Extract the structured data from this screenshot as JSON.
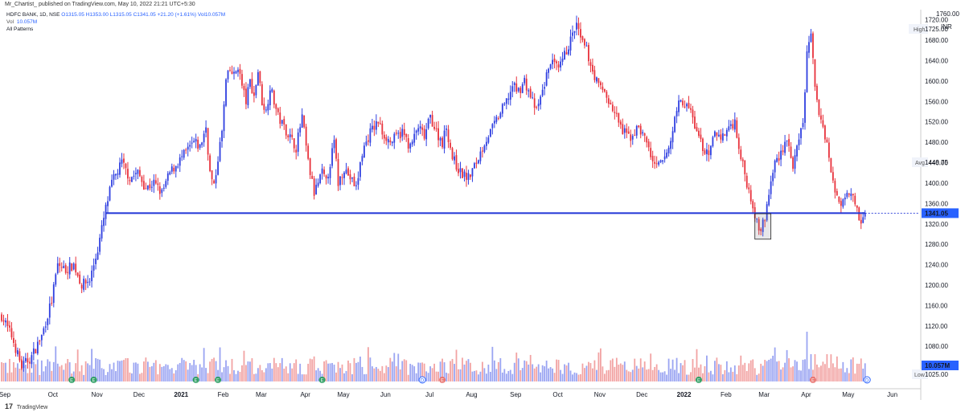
{
  "header": {
    "published": "Mr_Chartist_ published on TradingView.com, May 10, 2022 21:21 UTC+5:30"
  },
  "legend": {
    "symbol": "HDFC BANK, 1D, NSE",
    "ohlc": {
      "o": "O1315.05",
      "h": "H1353.00",
      "l": "L1315.05",
      "c": "C1341.05",
      "chg": "+21.20 (+1.61%)",
      "vol": "Vol10.057M"
    },
    "vol_label": "Vol",
    "vol_value": "10.057M",
    "patterns": "All Patterns"
  },
  "footer": {
    "logo": "17",
    "brand": "TradingView"
  },
  "colors": {
    "up": "#2f3fe0",
    "down": "#e8323c",
    "vol_up": "#9aa4f2",
    "vol_down": "#f2a3a3",
    "support": "#2135d6",
    "accent": "#2962ff",
    "event_green": "#2e9e63",
    "event_red": "#e8736f",
    "event_blue": "#2962ff"
  },
  "chart_data": {
    "type": "candlestick",
    "symbol": "HDFC BANK",
    "interval": "1D",
    "exchange": "NSE",
    "currency": "INR",
    "ylim": [
      1000,
      1740
    ],
    "y_ticks": [
      1040,
      1080,
      1120,
      1160,
      1200,
      1240,
      1280,
      1320,
      1360,
      1400,
      1440,
      1480,
      1520,
      1560,
      1600,
      1640,
      1680,
      1720
    ],
    "y_tick_labels": [
      "1040.00",
      "1080.00",
      "1120.00",
      "1160.00",
      "1200.00",
      "1240.00",
      "1280.00",
      "1320.00",
      "1360.00",
      "1400.00",
      "1440.00",
      "1480.00",
      "1520.00",
      "1560.00",
      "1600.00",
      "1640.00",
      "1680.00",
      "1720.00"
    ],
    "top_tick_label": "1760.00",
    "currency_label": "INR",
    "x_labels": [
      {
        "label": "Sep",
        "x": 0
      },
      {
        "label": "Oct",
        "x": 24
      },
      {
        "label": "Nov",
        "x": 46
      },
      {
        "label": "Dec",
        "x": 67
      },
      {
        "label": "2021",
        "x": 88,
        "bold": true
      },
      {
        "label": "Feb",
        "x": 109
      },
      {
        "label": "Mar",
        "x": 128
      },
      {
        "label": "Apr",
        "x": 150
      },
      {
        "label": "May",
        "x": 169
      },
      {
        "label": "Jun",
        "x": 190
      },
      {
        "label": "Jul",
        "x": 212
      },
      {
        "label": "Aug",
        "x": 233
      },
      {
        "label": "Sep",
        "x": 255
      },
      {
        "label": "Oct",
        "x": 276
      },
      {
        "label": "Nov",
        "x": 297
      },
      {
        "label": "Dec",
        "x": 318
      },
      {
        "label": "2022",
        "x": 339,
        "bold": true
      },
      {
        "label": "Feb",
        "x": 360
      },
      {
        "label": "Mar",
        "x": 379
      },
      {
        "label": "Apr",
        "x": 400
      },
      {
        "label": "May",
        "x": 421
      },
      {
        "label": "Jun",
        "x": 443
      }
    ],
    "price_path": [
      [
        0,
        1140
      ],
      [
        5,
        1100
      ],
      [
        10,
        1040
      ],
      [
        15,
        1060
      ],
      [
        20,
        1100
      ],
      [
        25,
        1170
      ],
      [
        28,
        1240
      ],
      [
        32,
        1230
      ],
      [
        36,
        1240
      ],
      [
        40,
        1200
      ],
      [
        44,
        1210
      ],
      [
        48,
        1270
      ],
      [
        52,
        1350
      ],
      [
        55,
        1400
      ],
      [
        60,
        1440
      ],
      [
        64,
        1410
      ],
      [
        68,
        1420
      ],
      [
        72,
        1390
      ],
      [
        76,
        1400
      ],
      [
        80,
        1380
      ],
      [
        84,
        1420
      ],
      [
        88,
        1440
      ],
      [
        92,
        1460
      ],
      [
        96,
        1480
      ],
      [
        99,
        1470
      ],
      [
        102,
        1510
      ],
      [
        104,
        1420
      ],
      [
        106,
        1390
      ],
      [
        108,
        1450
      ],
      [
        110,
        1500
      ],
      [
        112,
        1600
      ],
      [
        114,
        1620
      ],
      [
        116,
        1610
      ],
      [
        118,
        1630
      ],
      [
        120,
        1590
      ],
      [
        122,
        1560
      ],
      [
        124,
        1600
      ],
      [
        126,
        1570
      ],
      [
        128,
        1620
      ],
      [
        130,
        1560
      ],
      [
        132,
        1540
      ],
      [
        134,
        1590
      ],
      [
        136,
        1560
      ],
      [
        138,
        1530
      ],
      [
        141,
        1510
      ],
      [
        144,
        1490
      ],
      [
        147,
        1470
      ],
      [
        150,
        1530
      ],
      [
        153,
        1440
      ],
      [
        156,
        1380
      ],
      [
        158,
        1400
      ],
      [
        160,
        1420
      ],
      [
        162,
        1400
      ],
      [
        164,
        1440
      ],
      [
        166,
        1480
      ],
      [
        168,
        1400
      ],
      [
        171,
        1430
      ],
      [
        174,
        1410
      ],
      [
        177,
        1390
      ],
      [
        180,
        1460
      ],
      [
        184,
        1500
      ],
      [
        188,
        1520
      ],
      [
        190,
        1500
      ],
      [
        194,
        1480
      ],
      [
        197,
        1490
      ],
      [
        200,
        1500
      ],
      [
        204,
        1470
      ],
      [
        208,
        1510
      ],
      [
        211,
        1490
      ],
      [
        214,
        1530
      ],
      [
        217,
        1500
      ],
      [
        220,
        1480
      ],
      [
        222,
        1510
      ],
      [
        225,
        1450
      ],
      [
        229,
        1420
      ],
      [
        233,
        1410
      ],
      [
        237,
        1440
      ],
      [
        241,
        1480
      ],
      [
        244,
        1500
      ],
      [
        248,
        1530
      ],
      [
        252,
        1560
      ],
      [
        255,
        1590
      ],
      [
        258,
        1580
      ],
      [
        261,
        1600
      ],
      [
        264,
        1570
      ],
      [
        267,
        1540
      ],
      [
        270,
        1580
      ],
      [
        274,
        1640
      ],
      [
        278,
        1620
      ],
      [
        282,
        1660
      ],
      [
        285,
        1690
      ],
      [
        287,
        1710
      ],
      [
        289,
        1680
      ],
      [
        292,
        1660
      ],
      [
        295,
        1620
      ],
      [
        298,
        1590
      ],
      [
        301,
        1580
      ],
      [
        304,
        1550
      ],
      [
        307,
        1530
      ],
      [
        310,
        1500
      ],
      [
        314,
        1490
      ],
      [
        318,
        1510
      ],
      [
        322,
        1480
      ],
      [
        326,
        1430
      ],
      [
        330,
        1440
      ],
      [
        334,
        1480
      ],
      [
        337,
        1550
      ],
      [
        340,
        1560
      ],
      [
        344,
        1540
      ],
      [
        347,
        1500
      ],
      [
        350,
        1470
      ],
      [
        353,
        1450
      ],
      [
        356,
        1500
      ],
      [
        360,
        1490
      ],
      [
        363,
        1510
      ],
      [
        366,
        1520
      ],
      [
        369,
        1450
      ],
      [
        372,
        1400
      ],
      [
        375,
        1360
      ],
      [
        377,
        1320
      ],
      [
        379,
        1310
      ],
      [
        381,
        1330
      ],
      [
        383,
        1380
      ],
      [
        386,
        1440
      ],
      [
        389,
        1460
      ],
      [
        392,
        1490
      ],
      [
        395,
        1430
      ],
      [
        398,
        1480
      ],
      [
        400,
        1520
      ],
      [
        402,
        1650
      ],
      [
        404,
        1700
      ],
      [
        406,
        1580
      ],
      [
        408,
        1540
      ],
      [
        410,
        1510
      ],
      [
        412,
        1480
      ],
      [
        414,
        1420
      ],
      [
        416,
        1380
      ],
      [
        419,
        1360
      ],
      [
        422,
        1390
      ],
      [
        425,
        1380
      ],
      [
        427,
        1350
      ],
      [
        429,
        1320
      ],
      [
        431,
        1341
      ]
    ],
    "extremes": {
      "high": {
        "label": "High",
        "value": "1725.00"
      },
      "avg": {
        "label": "Avg",
        "value": "1448.75"
      },
      "low": {
        "label": "Low",
        "value": "1025.00"
      }
    },
    "last_price": {
      "value": 1341.05,
      "label": "1341.05"
    },
    "volume_label": "10.057M",
    "support_level": 1341,
    "support_x_start": 52,
    "support_x_end": 431,
    "highlight_box": {
      "x_start": 376,
      "x_end": 384,
      "y_low": 1290,
      "y_high": 1340
    },
    "events": [
      {
        "x": 35,
        "kind": "dividend",
        "color": "green",
        "glyph": "E"
      },
      {
        "x": 46,
        "kind": "earnings",
        "color": "green",
        "glyph": "E"
      },
      {
        "x": 97,
        "kind": "earnings",
        "color": "green",
        "glyph": "E"
      },
      {
        "x": 108,
        "kind": "earnings",
        "color": "green",
        "glyph": "E"
      },
      {
        "x": 160,
        "kind": "earnings",
        "color": "green",
        "glyph": "E"
      },
      {
        "x": 210,
        "kind": "dividend",
        "color": "blue",
        "glyph": "D"
      },
      {
        "x": 220,
        "kind": "earnings",
        "color": "red",
        "glyph": "E"
      },
      {
        "x": 348,
        "kind": "earnings",
        "color": "green",
        "glyph": "E"
      },
      {
        "x": 405,
        "kind": "earnings",
        "color": "red",
        "glyph": "E"
      },
      {
        "x": 432,
        "kind": "dividend",
        "color": "blue",
        "glyph": "D"
      }
    ]
  }
}
